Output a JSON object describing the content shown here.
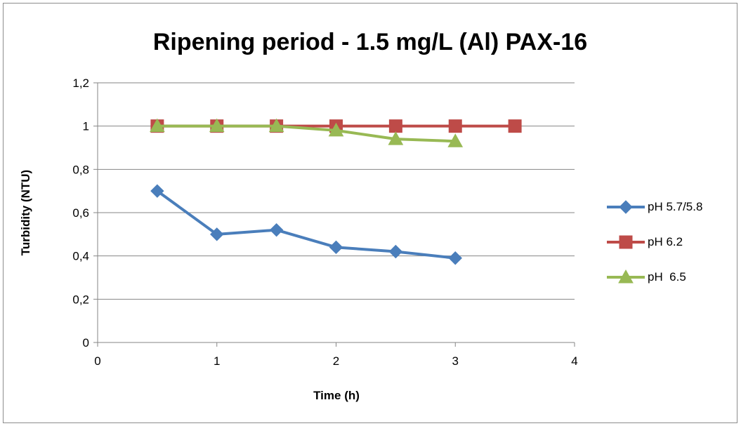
{
  "chart_data": {
    "type": "line",
    "title": "Ripening period - 1.5 mg/L (Al) PAX-16",
    "xlabel": "Time (h)",
    "ylabel": "Turbidity (NTU)",
    "xlim": [
      0,
      4
    ],
    "ylim": [
      0,
      1.2
    ],
    "x_ticks": [
      "0",
      "1",
      "2",
      "3",
      "4"
    ],
    "y_ticks": [
      "0",
      "0,2",
      "0,4",
      "0,6",
      "0,8",
      "1",
      "1,2"
    ],
    "grid": "horizontal",
    "legend_position": "right",
    "series": [
      {
        "name": "pH 5.7/5.8",
        "color": "#4a7ebb",
        "marker": "diamond",
        "x": [
          0.5,
          1,
          1.5,
          2,
          2.5,
          3
        ],
        "y": [
          0.7,
          0.5,
          0.52,
          0.44,
          0.42,
          0.39
        ]
      },
      {
        "name": "pH 6.2",
        "color": "#be4b48",
        "marker": "square",
        "x": [
          0.5,
          1,
          1.5,
          2,
          2.5,
          3,
          3.5
        ],
        "y": [
          1.0,
          1.0,
          1.0,
          1.0,
          1.0,
          1.0,
          1.0
        ]
      },
      {
        "name": "pH  6.5",
        "color": "#98b954",
        "marker": "triangle",
        "x": [
          0.5,
          1,
          1.5,
          2,
          2.5,
          3
        ],
        "y": [
          1.0,
          1.0,
          1.0,
          0.98,
          0.94,
          0.93
        ]
      }
    ]
  }
}
